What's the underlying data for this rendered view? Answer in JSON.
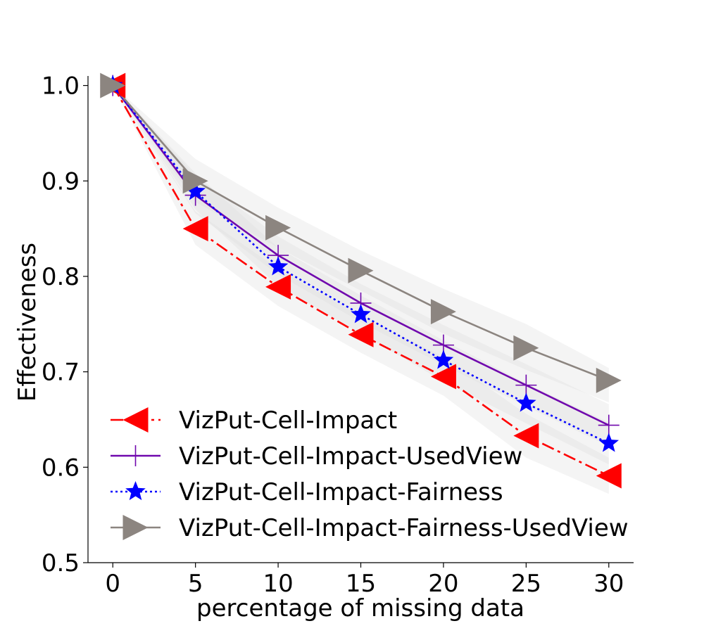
{
  "chart_data": {
    "type": "line",
    "title": "",
    "xlabel": "percentage of missing data",
    "ylabel": "Effectiveness",
    "xlim": [
      -1.5,
      31.5
    ],
    "ylim": [
      0.5,
      1.01
    ],
    "xticks": [
      0,
      5,
      10,
      15,
      20,
      25,
      30
    ],
    "yticks": [
      0.5,
      0.6,
      0.7,
      0.8,
      0.9,
      1.0
    ],
    "ytick_labels": [
      "0.5",
      "0.6",
      "0.7",
      "0.8",
      "0.9",
      "1.0"
    ],
    "x": [
      0,
      5,
      10,
      15,
      20,
      25,
      30
    ],
    "grid": false,
    "legend_position": "lower-left",
    "series": [
      {
        "name": "VizPut-Cell-Impact",
        "color": "#ff0000",
        "marker": "triangle-left",
        "dash": "dashdot",
        "values": [
          1.0,
          0.85,
          0.789,
          0.739,
          0.695,
          0.633,
          0.591
        ],
        "band_low": [
          1.0,
          0.833,
          0.769,
          0.72,
          0.675,
          0.61,
          0.572
        ],
        "band_high": [
          1.0,
          0.868,
          0.808,
          0.758,
          0.716,
          0.656,
          0.61
        ]
      },
      {
        "name": "VizPut-Cell-Impact-UsedView",
        "color": "#7008ad",
        "marker": "plus",
        "dash": "solid",
        "values": [
          1.0,
          0.885,
          0.822,
          0.772,
          0.728,
          0.686,
          0.644
        ],
        "band_low": [
          1.0,
          0.866,
          0.802,
          0.752,
          0.707,
          0.664,
          0.622
        ],
        "band_high": [
          1.0,
          0.905,
          0.842,
          0.792,
          0.749,
          0.708,
          0.666
        ]
      },
      {
        "name": "VizPut-Cell-Impact-Fairness",
        "color": "#0000ff",
        "marker": "star",
        "dash": "dotted",
        "values": [
          1.0,
          0.889,
          0.81,
          0.76,
          0.712,
          0.667,
          0.625
        ],
        "band_low": [
          1.0,
          0.87,
          0.79,
          0.74,
          0.69,
          0.646,
          0.603
        ],
        "band_high": [
          1.0,
          0.908,
          0.83,
          0.78,
          0.733,
          0.688,
          0.647
        ]
      },
      {
        "name": "VizPut-Cell-Impact-Fairness-UsedView",
        "color": "#8c8580",
        "marker": "triangle-right",
        "dash": "solid",
        "values": [
          1.0,
          0.9,
          0.851,
          0.806,
          0.763,
          0.725,
          0.691
        ],
        "band_low": [
          1.0,
          0.878,
          0.83,
          0.785,
          0.74,
          0.702,
          0.668
        ],
        "band_high": [
          1.0,
          0.923,
          0.872,
          0.827,
          0.787,
          0.75,
          0.704
        ]
      }
    ]
  }
}
